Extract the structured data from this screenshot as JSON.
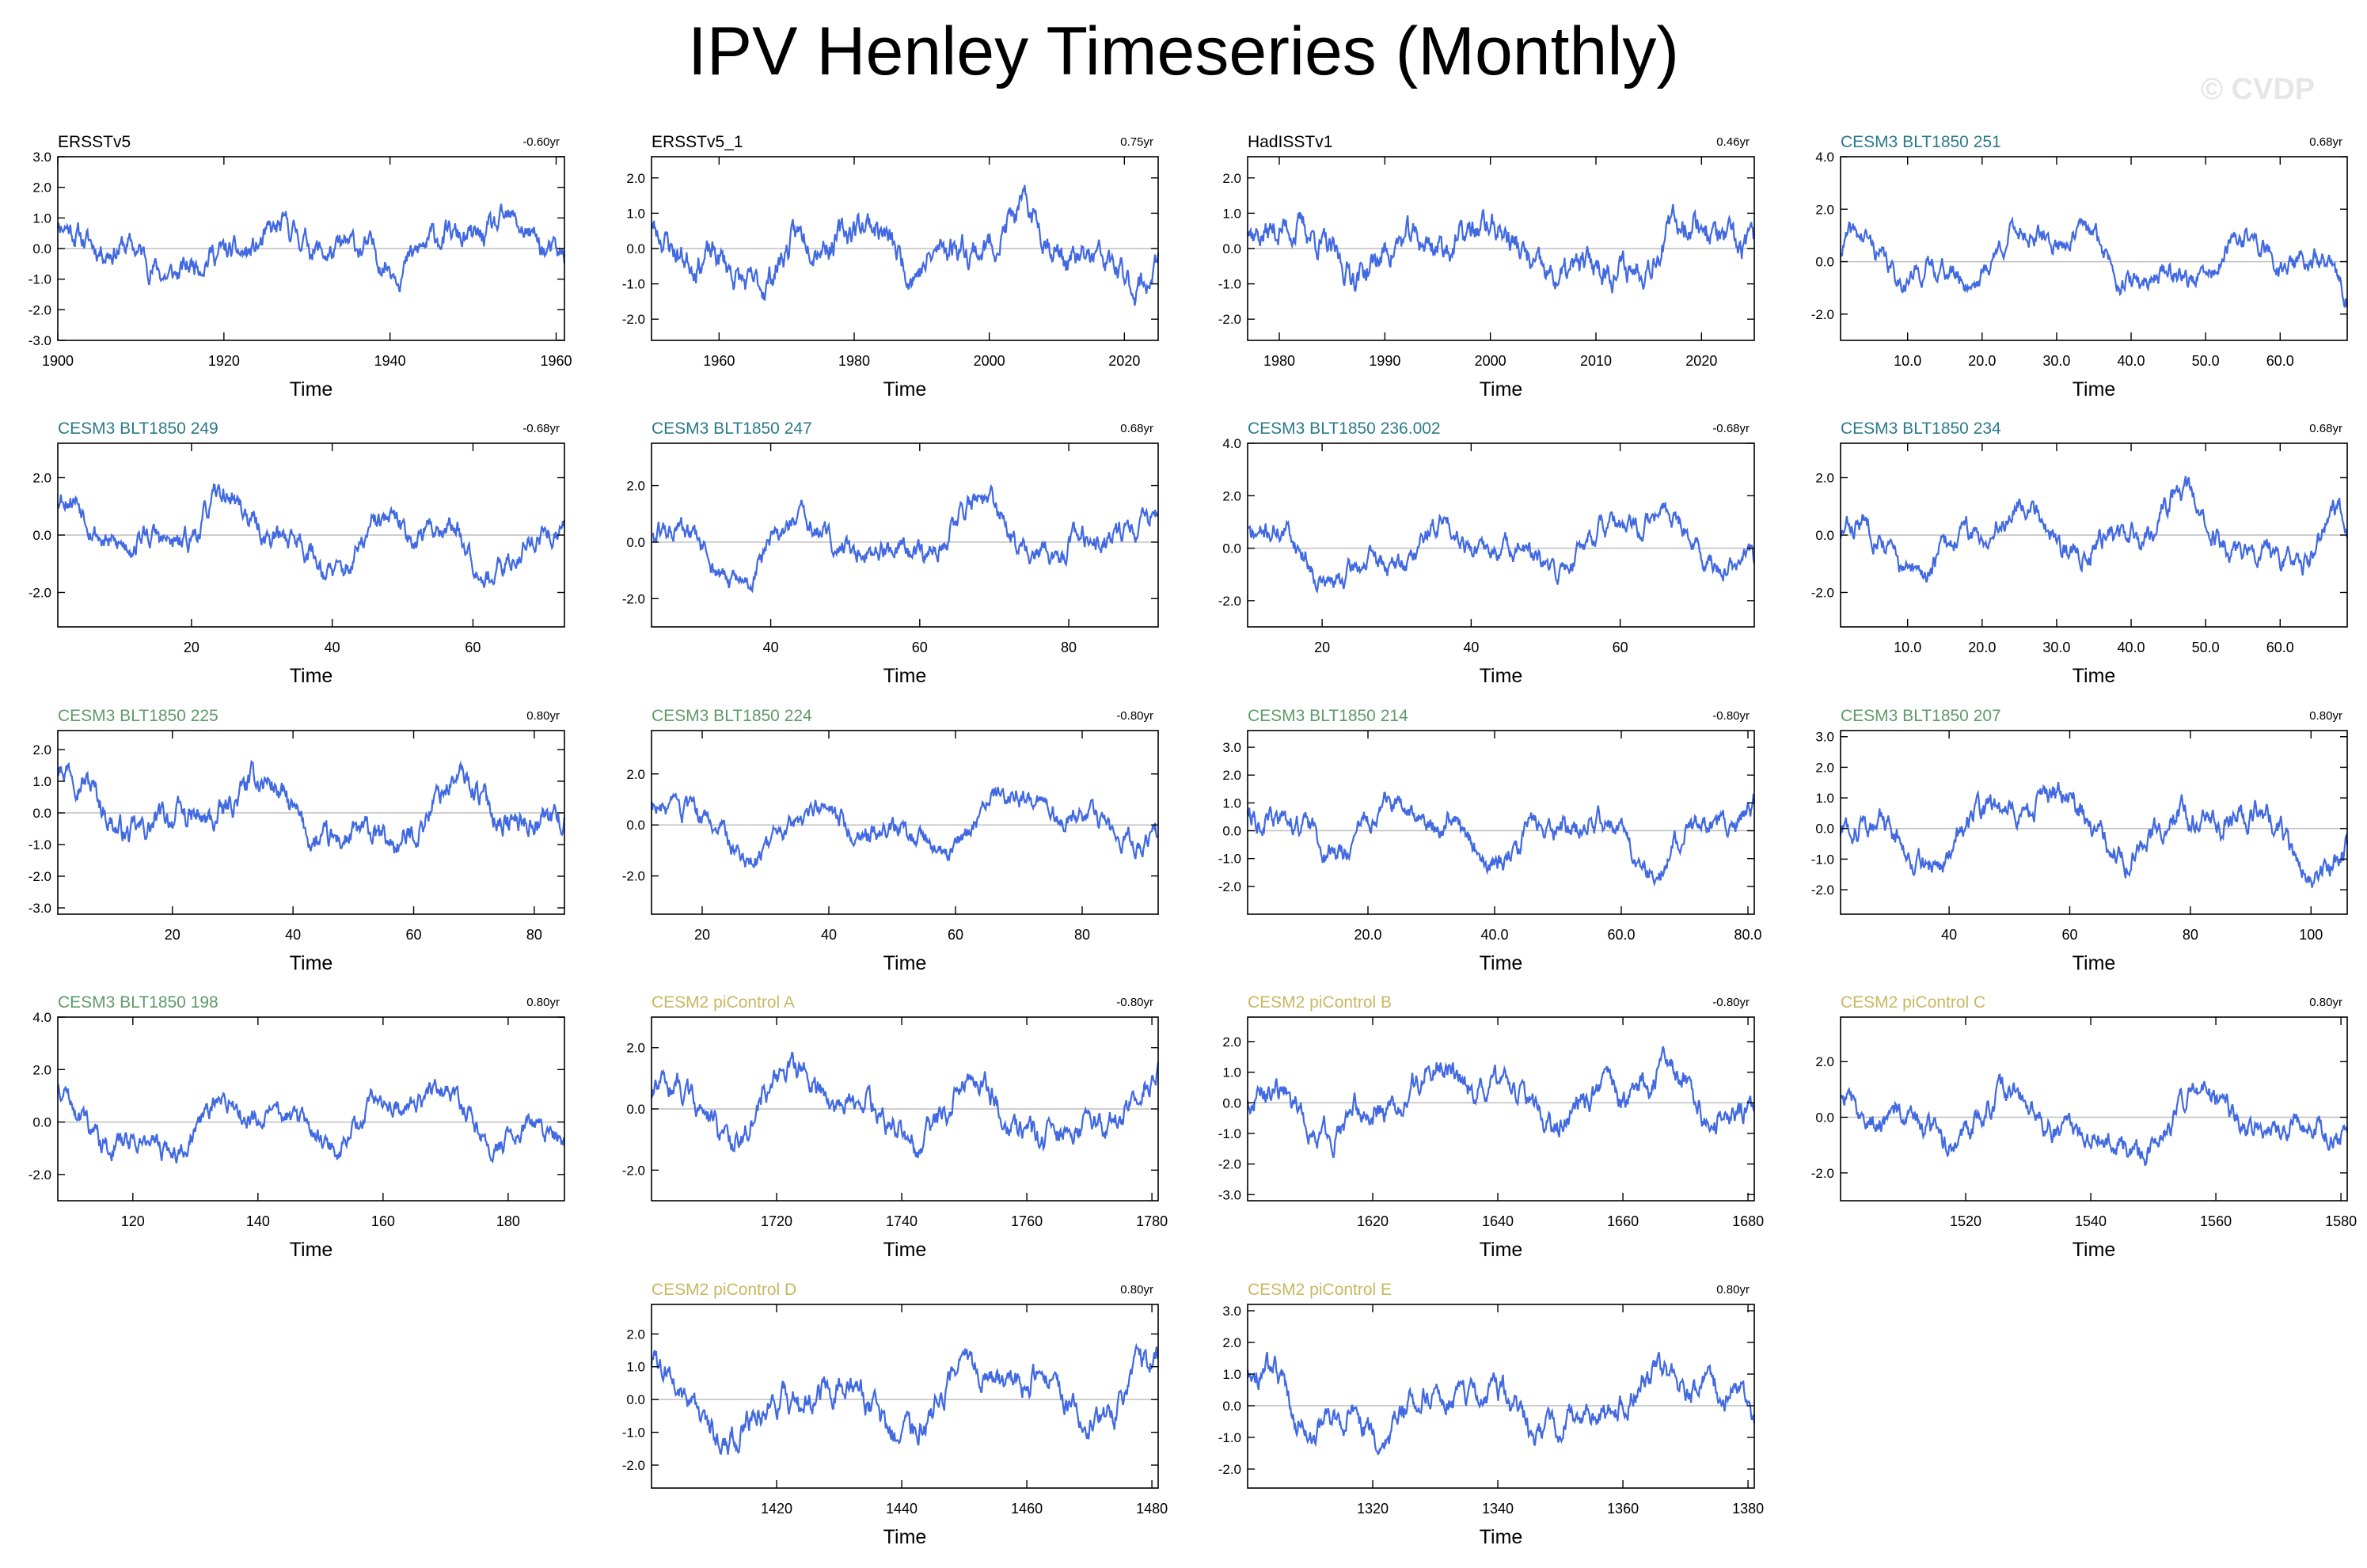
{
  "title": "IPV Henley Timeseries (Monthly)",
  "watermark": "© CVDP",
  "colors": {
    "line": "#4169e1",
    "zero_line": "#bfbfbf",
    "obs_title": "#000000",
    "cesm3_blue": "#2b7a8c",
    "cesm3_green": "#5f9a6a",
    "cesm2": "#c8b860"
  },
  "chart_data": [
    {
      "type": "line",
      "title": "ERSSTv5",
      "title_color": "obs",
      "trend": "-0.60yr",
      "xlabel": "Time",
      "xlim": [
        1900,
        1961
      ],
      "xticks": [
        1900,
        1920,
        1940,
        1960
      ],
      "xtick_labels": [
        "1900",
        "1920",
        "1940",
        "1960"
      ],
      "ylim": [
        -3.0,
        3.0
      ],
      "yticks": [
        -3,
        -2,
        -1,
        0,
        1,
        2,
        3
      ],
      "ytick_labels": [
        "-3.0",
        "-2.0",
        "-1.0",
        "0.0",
        "1.0",
        "2.0",
        "3.0"
      ],
      "seed": 11,
      "amp": 0.6
    },
    {
      "type": "line",
      "title": "ERSSTv5_1",
      "title_color": "obs",
      "trend": "0.75yr",
      "xlabel": "Time",
      "xlim": [
        1950,
        2025
      ],
      "xticks": [
        1960,
        1980,
        2000,
        2020
      ],
      "xtick_labels": [
        "1960",
        "1980",
        "2000",
        "2020"
      ],
      "ylim": [
        -2.6,
        2.6
      ],
      "yticks": [
        -2,
        -1,
        0,
        1,
        2
      ],
      "ytick_labels": [
        "-2.0",
        "-1.0",
        "0.0",
        "1.0",
        "2.0"
      ],
      "seed": 23,
      "amp": 0.75
    },
    {
      "type": "line",
      "title": "HadISSTv1",
      "title_color": "obs",
      "trend": "0.46yr",
      "xlabel": "Time",
      "xlim": [
        1977,
        2025
      ],
      "xticks": [
        1980,
        1990,
        2000,
        2010,
        2020
      ],
      "xtick_labels": [
        "1980",
        "1990",
        "2000",
        "2010",
        "2020"
      ],
      "ylim": [
        -2.6,
        2.6
      ],
      "yticks": [
        -2,
        -1,
        0,
        1,
        2
      ],
      "ytick_labels": [
        "-2.0",
        "-1.0",
        "0.0",
        "1.0",
        "2.0"
      ],
      "seed": 37,
      "amp": 0.7
    },
    {
      "type": "line",
      "title": "CESM3 BLT1850 251",
      "title_color": "cesm3_blue",
      "trend": "0.68yr",
      "xlabel": "Time",
      "xlim": [
        1,
        69
      ],
      "xticks": [
        10,
        20,
        30,
        40,
        50,
        60
      ],
      "xtick_labels": [
        "10.0",
        "20.0",
        "30.0",
        "40.0",
        "50.0",
        "60.0"
      ],
      "ylim": [
        -3.0,
        4.0
      ],
      "yticks": [
        -2,
        0,
        2,
        4
      ],
      "ytick_labels": [
        "-2.0",
        "0.0",
        "2.0",
        "4.0"
      ],
      "seed": 41,
      "amp": 1.0
    },
    {
      "type": "line",
      "title": "CESM3 BLT1850 249",
      "title_color": "cesm3_blue",
      "trend": "-0.68yr",
      "xlabel": "Time",
      "xlim": [
        1,
        73
      ],
      "xticks": [
        20,
        40,
        60
      ],
      "xtick_labels": [
        "20",
        "40",
        "60"
      ],
      "ylim": [
        -3.2,
        3.2
      ],
      "yticks": [
        -2,
        0,
        2
      ],
      "ytick_labels": [
        "-2.0",
        "0.0",
        "2.0"
      ],
      "seed": 53,
      "amp": 1.0
    },
    {
      "type": "line",
      "title": "CESM3 BLT1850 247",
      "title_color": "cesm3_blue",
      "trend": "0.68yr",
      "xlabel": "Time",
      "xlim": [
        24,
        92
      ],
      "xticks": [
        40,
        60,
        80
      ],
      "xtick_labels": [
        "40",
        "60",
        "80"
      ],
      "ylim": [
        -3.0,
        3.5
      ],
      "yticks": [
        -2,
        0,
        2
      ],
      "ytick_labels": [
        "-2.0",
        "0.0",
        "2.0"
      ],
      "seed": 61,
      "amp": 1.0
    },
    {
      "type": "line",
      "title": "CESM3 BLT1850 236.002",
      "title_color": "cesm3_blue",
      "trend": "-0.68yr",
      "xlabel": "Time",
      "xlim": [
        10,
        78
      ],
      "xticks": [
        20,
        40,
        60
      ],
      "xtick_labels": [
        "20",
        "40",
        "60"
      ],
      "ylim": [
        -3.0,
        4.0
      ],
      "yticks": [
        -2,
        0,
        2,
        4
      ],
      "ytick_labels": [
        "-2.0",
        "0.0",
        "2.0",
        "4.0"
      ],
      "seed": 71,
      "amp": 1.0
    },
    {
      "type": "line",
      "title": "CESM3 BLT1850 234",
      "title_color": "cesm3_blue",
      "trend": "0.68yr",
      "xlabel": "Time",
      "xlim": [
        1,
        69
      ],
      "xticks": [
        10,
        20,
        30,
        40,
        50,
        60
      ],
      "xtick_labels": [
        "10.0",
        "20.0",
        "30.0",
        "40.0",
        "50.0",
        "60.0"
      ],
      "ylim": [
        -3.2,
        3.2
      ],
      "yticks": [
        -2,
        0,
        2
      ],
      "ytick_labels": [
        "-2.0",
        "0.0",
        "2.0"
      ],
      "seed": 83,
      "amp": 1.0
    },
    {
      "type": "line",
      "title": "CESM3 BLT1850 225",
      "title_color": "cesm3_green",
      "trend": "0.80yr",
      "xlabel": "Time",
      "xlim": [
        1,
        85
      ],
      "xticks": [
        20,
        40,
        60,
        80
      ],
      "xtick_labels": [
        "20",
        "40",
        "60",
        "80"
      ],
      "ylim": [
        -3.2,
        2.6
      ],
      "yticks": [
        -3,
        -2,
        -1,
        0,
        1,
        2
      ],
      "ytick_labels": [
        "-3.0",
        "-2.0",
        "-1.0",
        "0.0",
        "1.0",
        "2.0"
      ],
      "seed": 97,
      "amp": 1.0
    },
    {
      "type": "line",
      "title": "CESM3 BLT1850 224",
      "title_color": "cesm3_green",
      "trend": "-0.80yr",
      "xlabel": "Time",
      "xlim": [
        12,
        92
      ],
      "xticks": [
        20,
        40,
        60,
        80
      ],
      "xtick_labels": [
        "20",
        "40",
        "60",
        "80"
      ],
      "ylim": [
        -3.5,
        3.7
      ],
      "yticks": [
        -2,
        0,
        2
      ],
      "ytick_labels": [
        "-2.0",
        "0.0",
        "2.0"
      ],
      "seed": 103,
      "amp": 1.0
    },
    {
      "type": "line",
      "title": "CESM3 BLT1850 214",
      "title_color": "cesm3_green",
      "trend": "-0.80yr",
      "xlabel": "Time",
      "xlim": [
        1,
        81
      ],
      "xticks": [
        20,
        40,
        60,
        80
      ],
      "xtick_labels": [
        "20.0",
        "40.0",
        "60.0",
        "80.0"
      ],
      "ylim": [
        -3.0,
        3.6
      ],
      "yticks": [
        -2,
        -1,
        0,
        1,
        2,
        3
      ],
      "ytick_labels": [
        "-2.0",
        "-1.0",
        "0.0",
        "1.0",
        "2.0",
        "3.0"
      ],
      "seed": 113,
      "amp": 0.9
    },
    {
      "type": "line",
      "title": "CESM3 BLT1850 207",
      "title_color": "cesm3_green",
      "trend": "0.80yr",
      "xlabel": "Time",
      "xlim": [
        22,
        106
      ],
      "xticks": [
        40,
        60,
        80,
        100
      ],
      "xtick_labels": [
        "40",
        "60",
        "80",
        "100"
      ],
      "ylim": [
        -2.8,
        3.2
      ],
      "yticks": [
        -2,
        -1,
        0,
        1,
        2,
        3
      ],
      "ytick_labels": [
        "-2.0",
        "-1.0",
        "0.0",
        "1.0",
        "2.0",
        "3.0"
      ],
      "seed": 127,
      "amp": 0.9
    },
    {
      "type": "line",
      "title": "CESM3 BLT1850 198",
      "title_color": "cesm3_green",
      "trend": "0.80yr",
      "xlabel": "Time",
      "xlim": [
        108,
        189
      ],
      "xticks": [
        120,
        140,
        160,
        180
      ],
      "xtick_labels": [
        "120",
        "140",
        "160",
        "180"
      ],
      "ylim": [
        -3.0,
        4.0
      ],
      "yticks": [
        -2,
        0,
        2,
        4
      ],
      "ytick_labels": [
        "-2.0",
        "0.0",
        "2.0",
        "4.0"
      ],
      "seed": 131,
      "amp": 1.0
    },
    {
      "type": "line",
      "title": "CESM2 piControl A",
      "title_color": "cesm2",
      "trend": "-0.80yr",
      "xlabel": "Time",
      "xlim": [
        1700,
        1781
      ],
      "xticks": [
        1720,
        1740,
        1760,
        1780
      ],
      "xtick_labels": [
        "1720",
        "1740",
        "1760",
        "1780"
      ],
      "ylim": [
        -3.0,
        3.0
      ],
      "yticks": [
        -2,
        0,
        2
      ],
      "ytick_labels": [
        "-2.0",
        "0.0",
        "2.0"
      ],
      "seed": 139,
      "amp": 1.0
    },
    {
      "type": "line",
      "title": "CESM2 piControl B",
      "title_color": "cesm2",
      "trend": "-0.80yr",
      "xlabel": "Time",
      "xlim": [
        1600,
        1681
      ],
      "xticks": [
        1620,
        1640,
        1660,
        1680
      ],
      "xtick_labels": [
        "1620",
        "1640",
        "1660",
        "1680"
      ],
      "ylim": [
        -3.2,
        2.8
      ],
      "yticks": [
        -3,
        -2,
        -1,
        0,
        1,
        2
      ],
      "ytick_labels": [
        "-3.0",
        "-2.0",
        "-1.0",
        "0.0",
        "1.0",
        "2.0"
      ],
      "seed": 149,
      "amp": 0.9
    },
    {
      "type": "line",
      "title": "CESM2 piControl C",
      "title_color": "cesm2",
      "trend": "0.80yr",
      "xlabel": "Time",
      "xlim": [
        1500,
        1581
      ],
      "xticks": [
        1520,
        1540,
        1560,
        1580
      ],
      "xtick_labels": [
        "1520",
        "1540",
        "1560",
        "1580"
      ],
      "ylim": [
        -3.0,
        3.6
      ],
      "yticks": [
        -2,
        0,
        2
      ],
      "ytick_labels": [
        "-2.0",
        "0.0",
        "2.0"
      ],
      "seed": 157,
      "amp": 1.0
    },
    {
      "type": "line",
      "title": "CESM2 piControl D",
      "title_color": "cesm2",
      "trend": "0.80yr",
      "xlabel": "Time",
      "xlim": [
        1400,
        1481
      ],
      "xticks": [
        1420,
        1440,
        1460,
        1480
      ],
      "xtick_labels": [
        "1420",
        "1440",
        "1460",
        "1480"
      ],
      "ylim": [
        -2.7,
        2.9
      ],
      "yticks": [
        -2,
        -1,
        0,
        1,
        2
      ],
      "ytick_labels": [
        "-2.0",
        "-1.0",
        "0.0",
        "1.0",
        "2.0"
      ],
      "seed": 163,
      "amp": 0.9
    },
    {
      "type": "line",
      "title": "CESM2 piControl E",
      "title_color": "cesm2",
      "trend": "0.80yr",
      "xlabel": "Time",
      "xlim": [
        1300,
        1381
      ],
      "xticks": [
        1320,
        1340,
        1360,
        1380
      ],
      "xtick_labels": [
        "1320",
        "1340",
        "1360",
        "1380"
      ],
      "ylim": [
        -2.6,
        3.2
      ],
      "yticks": [
        -2,
        -1,
        0,
        1,
        2,
        3
      ],
      "ytick_labels": [
        "-2.0",
        "-1.0",
        "0.0",
        "1.0",
        "2.0",
        "3.0"
      ],
      "seed": 173,
      "amp": 0.9
    }
  ]
}
